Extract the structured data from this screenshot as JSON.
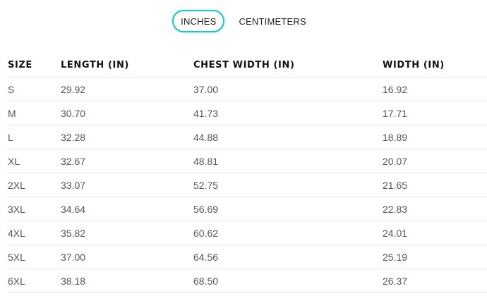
{
  "unit_toggle": {
    "options": [
      "INCHES",
      "CENTIMETERS"
    ],
    "selected": "INCHES"
  },
  "table": {
    "headers": [
      "SIZE",
      "LENGTH (IN)",
      "CHEST WIDTH (IN)",
      "WIDTH (IN)"
    ],
    "rows": [
      [
        "S",
        "29.92",
        "37.00",
        "16.92"
      ],
      [
        "M",
        "30.70",
        "41.73",
        "17.71"
      ],
      [
        "L",
        "32.28",
        "44.88",
        "18.89"
      ],
      [
        "XL",
        "32.67",
        "48.81",
        "20.07"
      ],
      [
        "2XL",
        "33.07",
        "52.75",
        "21.65"
      ],
      [
        "3XL",
        "34.64",
        "56.69",
        "22.83"
      ],
      [
        "4XL",
        "35.82",
        "60.62",
        "24.01"
      ],
      [
        "5XL",
        "37.00",
        "64.56",
        "25.19"
      ],
      [
        "6XL",
        "38.18",
        "68.50",
        "26.37"
      ]
    ]
  },
  "colors": {
    "accent": "#20c3c3",
    "text_header": "#111111",
    "text_cell": "#555555",
    "divider": "#e6e6e6"
  }
}
